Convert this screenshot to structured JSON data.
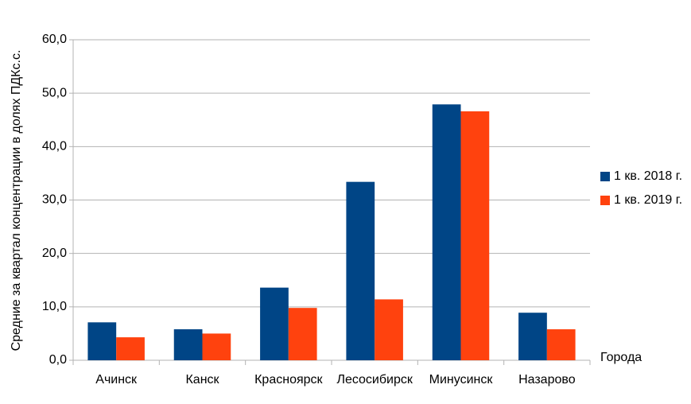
{
  "chart_data": {
    "type": "bar",
    "y_label": "Средние за квартал концентрации в долях ПДКс.с.",
    "x_label": "Города",
    "categories": [
      "Ачинск",
      "Канск",
      "Красноярск",
      "Лесосибирск",
      "Минусинск",
      "Назарово"
    ],
    "series": [
      {
        "name": "1 кв. 2018 г.",
        "color": "#004586",
        "values": [
          7.1,
          5.8,
          13.6,
          33.4,
          47.9,
          8.9
        ]
      },
      {
        "name": "1 кв. 2019 г.",
        "color": "#ff420e",
        "values": [
          4.3,
          5.0,
          9.8,
          11.4,
          46.6,
          5.8
        ]
      }
    ],
    "ylim": [
      0,
      60
    ],
    "yticks": [
      {
        "value": 0,
        "label": "0,0"
      },
      {
        "value": 10,
        "label": "10,0"
      },
      {
        "value": 20,
        "label": "20,0"
      },
      {
        "value": 30,
        "label": "30,0"
      },
      {
        "value": 40,
        "label": "40,0"
      },
      {
        "value": 50,
        "label": "50,0"
      },
      {
        "value": 60,
        "label": "60,0"
      }
    ],
    "grid": true,
    "legend": "right"
  }
}
